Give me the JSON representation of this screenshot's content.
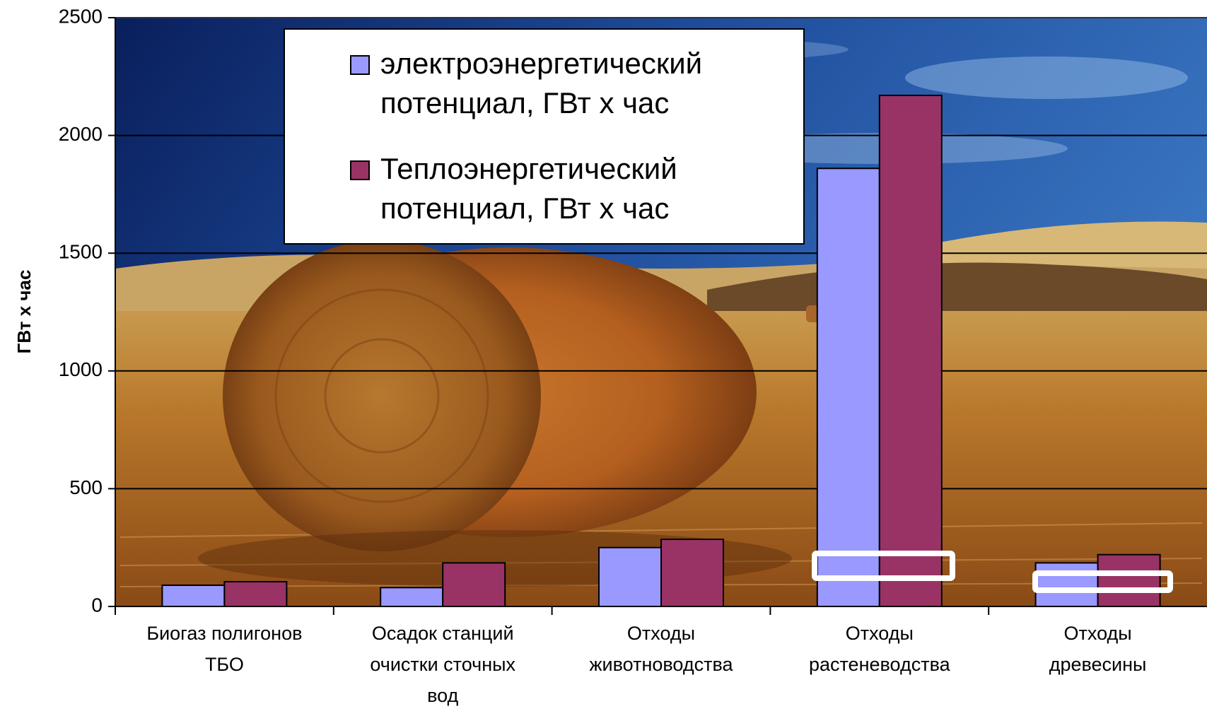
{
  "chart_data": {
    "type": "bar",
    "ylabel": "ГВт х час",
    "ylim": [
      0,
      2500
    ],
    "yticks": [
      0,
      500,
      1000,
      1500,
      2000,
      2500
    ],
    "grid": true,
    "legend_position": "top-center",
    "background_image": "hay-bale-field-photo",
    "categories": [
      [
        "Биогаз полигонов",
        "ТБО"
      ],
      [
        "Осадок станций",
        "очистки сточных",
        "вод"
      ],
      [
        "Отходы",
        "животноводства"
      ],
      [
        "Отходы",
        "растеневодства"
      ],
      [
        "Отходы",
        "древесины"
      ]
    ],
    "series": [
      {
        "name": [
          "электроэнергетический",
          "потенциал, ГВт х час"
        ],
        "color": "#9999ff",
        "values": [
          90,
          80,
          250,
          1860,
          185
        ]
      },
      {
        "name": [
          "Теплоэнергетический",
          "потенциал, ГВт х час"
        ],
        "color": "#993366",
        "values": [
          105,
          185,
          285,
          2170,
          220
        ]
      }
    ]
  }
}
